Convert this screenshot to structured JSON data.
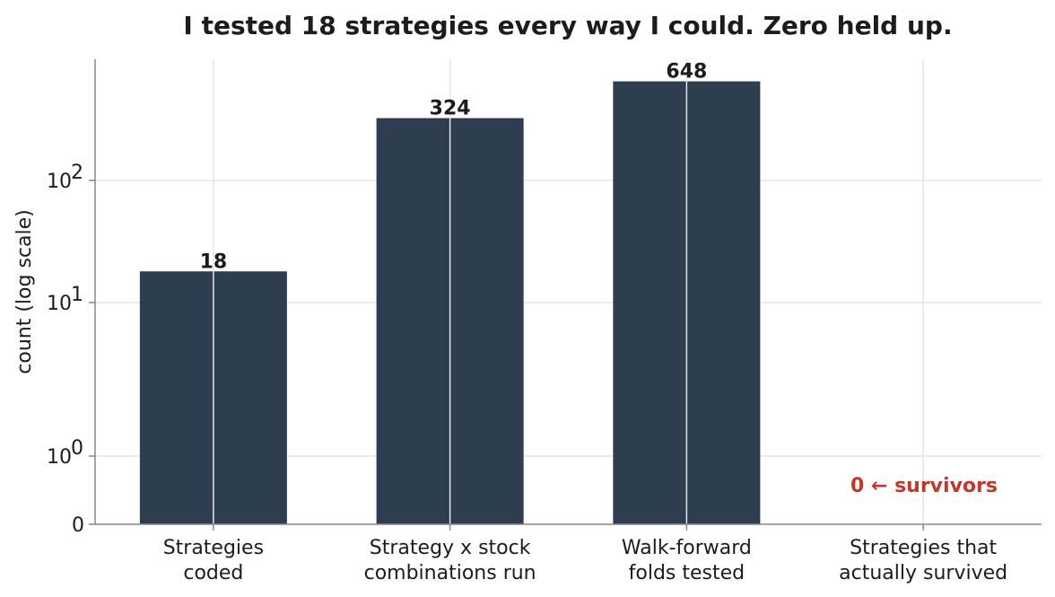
{
  "chart_data": {
    "type": "bar",
    "title": "I tested 18 strategies every way I could. Zero held up.",
    "ylabel": "count (log scale)",
    "xlabel": "",
    "yscale": "symlog",
    "ylim": [
      0,
      700
    ],
    "grid": true,
    "categories": [
      [
        "Strategies",
        "coded"
      ],
      [
        "Strategy x stock",
        "combinations run"
      ],
      [
        "Walk-forward",
        "folds tested"
      ],
      [
        "Strategies that",
        "actually survived"
      ]
    ],
    "values": [
      18,
      324,
      648,
      0
    ],
    "data_labels": [
      "18",
      "324",
      "648",
      ""
    ],
    "yticks": [
      {
        "value": 0,
        "base": "0",
        "exp": ""
      },
      {
        "value": 1,
        "base": "10",
        "exp": "0"
      },
      {
        "value": 10,
        "base": "10",
        "exp": "1"
      },
      {
        "value": 100,
        "base": "10",
        "exp": "2"
      }
    ],
    "annotation": {
      "text": "0  ← survivors",
      "color": "#c0392b"
    },
    "colors": {
      "bar": "#2e3e50",
      "grid": "#e6e6e6",
      "axis": "#888888"
    }
  }
}
